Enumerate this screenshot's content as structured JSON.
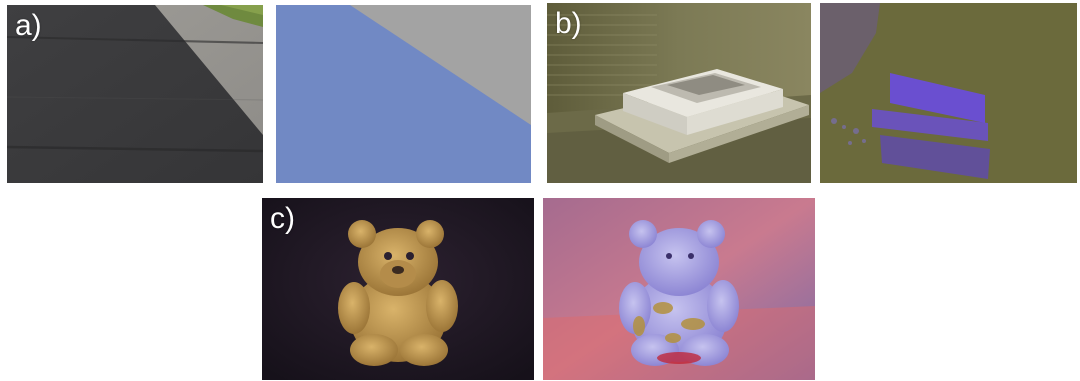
{
  "labels": {
    "a": "a)",
    "b": "b)",
    "c": "c)"
  },
  "colors": {
    "segmentation_blue": "#7189c4",
    "segmentation_gray": "#a3a3a3",
    "b_segmentation_olive": "#6b6a3c",
    "b_segmentation_purple": "#6a4fd0",
    "c_background": "#231a24",
    "c_bear_tan": "#caa15a"
  }
}
